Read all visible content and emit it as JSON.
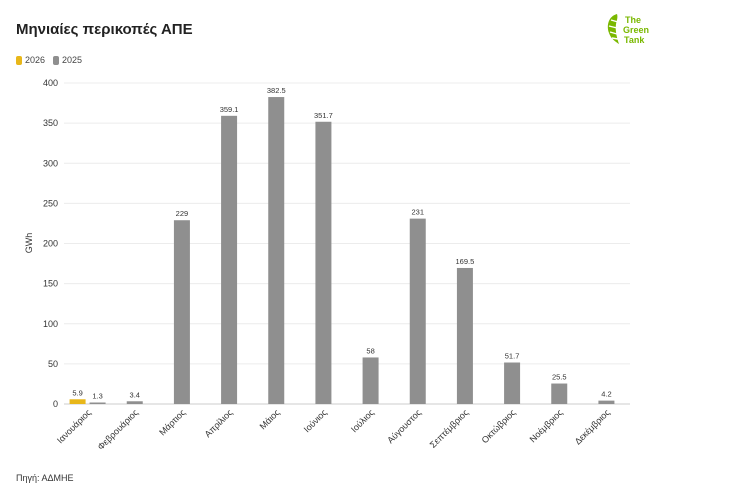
{
  "header": {
    "title": "Μηνιαίες περικοπές ΑΠΕ"
  },
  "logo": {
    "icon": "green-tank-leaf-logo",
    "line1": "The",
    "line2": "Green",
    "line3": "Tank",
    "color": "#7ab800"
  },
  "legend": {
    "items": [
      {
        "label": "2026",
        "color": "#e8b71a"
      },
      {
        "label": "2025",
        "color": "#8f8f8f"
      }
    ]
  },
  "footer": {
    "source": "Πηγή: ΑΔΜΗΕ"
  },
  "chart_data": {
    "type": "bar",
    "title": "Μηνιαίες περικοπές ΑΠΕ",
    "xlabel": "",
    "ylabel": "GWh",
    "ylim": [
      0,
      400
    ],
    "yticks": [
      "0",
      "50",
      "100",
      "150",
      "200",
      "250",
      "300",
      "350",
      "400"
    ],
    "grid": true,
    "legend_position": "top-left",
    "categories": [
      "Ιανουάριος",
      "Φεβρουάριος",
      "Μάρτιος",
      "Απρίλιος",
      "Μάιος",
      "Ιούνιος",
      "Ιούλιος",
      "Αύγουστος",
      "Σεπτέμβριος",
      "Οκτώβριος",
      "Νοέμβριος",
      "Δεκέμβριος"
    ],
    "series": [
      {
        "name": "2026",
        "color": "#e8b71a",
        "values": [
          5.9,
          null,
          null,
          null,
          null,
          null,
          null,
          null,
          null,
          null,
          null,
          null
        ],
        "labels": [
          "5.9",
          "",
          "",
          "",
          "",
          "",
          "",
          "",
          "",
          "",
          "",
          ""
        ]
      },
      {
        "name": "2025",
        "color": "#8f8f8f",
        "values": [
          1.3,
          3.4,
          229,
          359.1,
          382.5,
          351.7,
          58,
          231,
          169.5,
          51.7,
          25.5,
          4.2
        ],
        "labels": [
          "1.3",
          "3.4",
          "229",
          "359.1",
          "382.5",
          "351.7",
          "58",
          "231",
          "169.5",
          "51.7",
          "25.5",
          "4.2"
        ]
      }
    ]
  }
}
